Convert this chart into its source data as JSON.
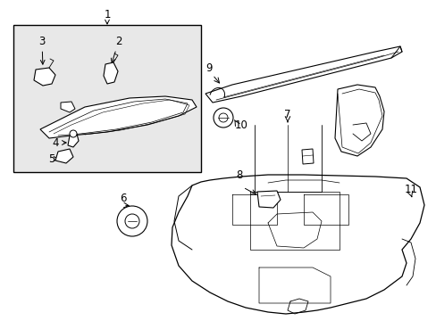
{
  "background_color": "#ffffff",
  "line_color": "#000000",
  "text_color": "#000000",
  "inset_bg": "#e8e8e8",
  "label_fontsize": 8.5,
  "fig_width": 4.89,
  "fig_height": 3.6,
  "dpi": 100
}
